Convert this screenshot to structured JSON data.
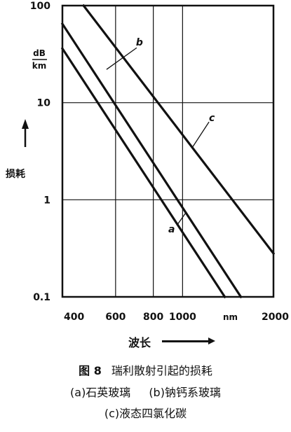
{
  "chart_data": {
    "type": "line",
    "scale": {
      "x": "log",
      "y": "log"
    },
    "xlim": [
      400,
      2000
    ],
    "ylim": [
      0.1,
      100
    ],
    "x_ticks": [
      400,
      600,
      800,
      1000,
      2000
    ],
    "x_tick_labels": [
      "400",
      "600",
      "800",
      "1000",
      "2000"
    ],
    "x_unit": "nm",
    "y_ticks": [
      0.1,
      1,
      10,
      100
    ],
    "y_tick_labels": [
      "0.1",
      "1",
      "10",
      "100"
    ],
    "y_unit_top": "dB",
    "y_unit_bottom": "km",
    "ylabel": "损耗",
    "xlabel": "波长",
    "grid": true,
    "series": [
      {
        "name": "a",
        "x": [
          400,
          1380
        ],
        "y": [
          36.1,
          0.1
        ]
      },
      {
        "name": "b",
        "x": [
          400,
          1560
        ],
        "y": [
          64.8,
          0.1
        ]
      },
      {
        "name": "c",
        "x": [
          470,
          2000
        ],
        "y": [
          100,
          0.28
        ]
      }
    ],
    "annotations": [
      {
        "text": "a",
        "x": 920,
        "y": 0.5
      },
      {
        "text": "b",
        "x": 720,
        "y": 42
      },
      {
        "text": "c",
        "x": 1250,
        "y": 7
      }
    ]
  },
  "caption": {
    "figure_number": "图 8",
    "title": "瑞利散射引起的损耗",
    "line1_a": "(a)石英玻璃",
    "line1_b": "(b)钠钙系玻璃",
    "line2": "(c)液态四氯化碳"
  }
}
